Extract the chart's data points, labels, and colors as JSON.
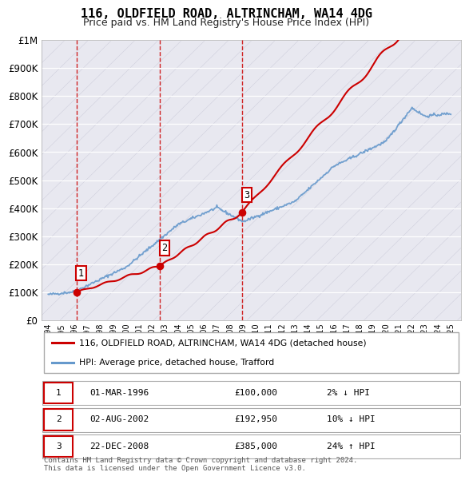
{
  "title": "116, OLDFIELD ROAD, ALTRINCHAM, WA14 4DG",
  "subtitle": "Price paid vs. HM Land Registry's House Price Index (HPI)",
  "ylim": [
    0,
    1000000
  ],
  "yticks": [
    0,
    100000,
    200000,
    300000,
    400000,
    500000,
    600000,
    700000,
    800000,
    900000,
    1000000
  ],
  "ytick_labels": [
    "£0",
    "£100K",
    "£200K",
    "£300K",
    "£400K",
    "£500K",
    "£600K",
    "£700K",
    "£800K",
    "£900K",
    "£1M"
  ],
  "plot_bg_color": "#e8e8f0",
  "sale_prices": [
    100000,
    192950,
    385000
  ],
  "sale_labels": [
    "1",
    "2",
    "3"
  ],
  "sale_color": "#cc0000",
  "hpi_color": "#6699cc",
  "legend_sale_label": "116, OLDFIELD ROAD, ALTRINCHAM, WA14 4DG (detached house)",
  "legend_hpi_label": "HPI: Average price, detached house, Trafford",
  "table_entries": [
    {
      "num": "1",
      "date": "01-MAR-1996",
      "price": "£100,000",
      "hpi": "2% ↓ HPI"
    },
    {
      "num": "2",
      "date": "02-AUG-2002",
      "price": "£192,950",
      "hpi": "10% ↓ HPI"
    },
    {
      "num": "3",
      "date": "22-DEC-2008",
      "price": "£385,000",
      "hpi": "24% ↑ HPI"
    }
  ],
  "footer": "Contains HM Land Registry data © Crown copyright and database right 2024.\nThis data is licensed under the Open Government Licence v3.0."
}
